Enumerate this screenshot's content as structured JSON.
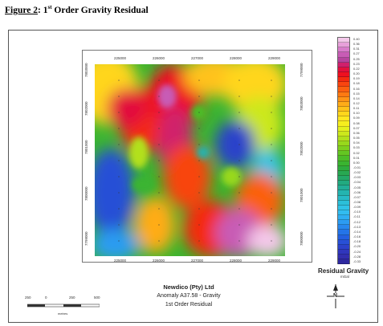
{
  "caption": {
    "prefix": "Figure 2",
    "sep": ": 1",
    "sup": "st",
    "rest": " Order Gravity Residual"
  },
  "title_block": {
    "company": "Newdico (Pty) Ltd",
    "project": "Anomaly A37.58 - Gravity",
    "subtitle": "1st Order Residual"
  },
  "grid_ticks": {
    "x_top": [
      "225000",
      "226000",
      "227000",
      "228000",
      "229000"
    ],
    "x_bottom": [
      "225000",
      "226000",
      "227000",
      "228000",
      "229000"
    ],
    "y": [
      "7803000",
      "7802000",
      "7801000",
      "7800000",
      "7799000"
    ]
  },
  "legend": {
    "title": "Residual Gravity",
    "unit": "mGal",
    "labels": [
      "0.40",
      "0.36",
      "0.31",
      "0.27",
      "0.25",
      "0.23",
      "0.22",
      "0.20",
      "0.19",
      "0.18",
      "0.16",
      "0.15",
      "0.14",
      "0.12",
      "0.11",
      "0.10",
      "0.09",
      "0.08",
      "0.07",
      "0.06",
      "0.05",
      "0.04",
      "0.03",
      "0.02",
      "0.01",
      "0.00",
      "-0.01",
      "-0.02",
      "-0.03",
      "-0.04",
      "-0.05",
      "-0.06",
      "-0.07",
      "-0.08",
      "-0.09",
      "-0.10",
      "-0.11",
      "-0.12",
      "-0.13",
      "-0.14",
      "-0.16",
      "-0.18",
      "-0.20",
      "-0.24",
      "-0.28",
      "-0.33"
    ],
    "colors": [
      "#f4c8ea",
      "#e8a0da",
      "#d97ccb",
      "#c85cb5",
      "#b6449e",
      "#d0206c",
      "#e2103c",
      "#ee1020",
      "#f42a10",
      "#f84510",
      "#fb6010",
      "#fd7a12",
      "#ff9416",
      "#ffac18",
      "#ffc21a",
      "#ffd61c",
      "#ffe620",
      "#f6ee1e",
      "#e4f01e",
      "#cce81c",
      "#b2e01c",
      "#98d81c",
      "#7ecf1e",
      "#64c622",
      "#4cbd28",
      "#3ab430",
      "#2eac3e",
      "#28a852",
      "#24a868",
      "#22aa80",
      "#22ae98",
      "#24b4b0",
      "#28bac6",
      "#2cbfd8",
      "#30c2e6",
      "#32bcf0",
      "#30aef2",
      "#2c9cf2",
      "#2888ee",
      "#2474e8",
      "#2460e0",
      "#2850d6",
      "#2c42ca",
      "#3036bc",
      "#322eae",
      "#2e28a0"
    ]
  },
  "scale_bar": {
    "labels": [
      "250",
      "0",
      "250",
      "500"
    ],
    "unit": "metres"
  },
  "north": {
    "label": "N"
  },
  "colors": {
    "frame": "#555555",
    "background": "#ffffff"
  }
}
